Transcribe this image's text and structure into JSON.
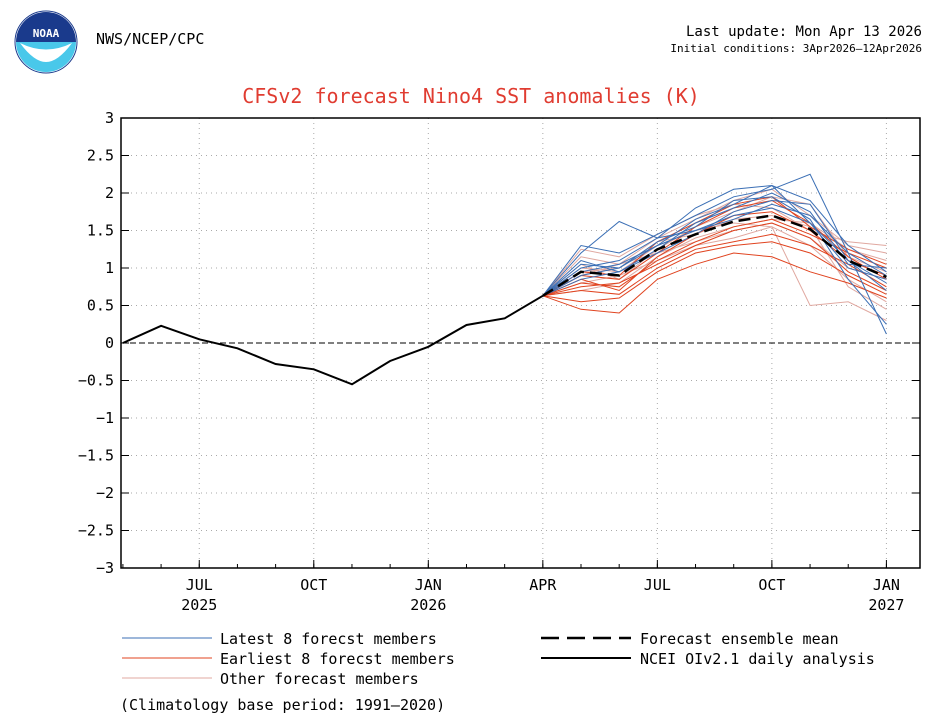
{
  "header": {
    "agency": "NWS/NCEP/CPC",
    "last_update": "Last update: Mon Apr 13 2026",
    "initial_conditions": "Initial conditions: 3Apr2026—12Apr2026",
    "logo_text": "NOAA"
  },
  "colors": {
    "latest": "#3b6fb5",
    "earliest": "#e0431f",
    "other": "#e0a8a0",
    "title": "#e03c31",
    "observed": "#000000",
    "grid": "#aaaaaa"
  },
  "chart_data": {
    "type": "line",
    "title": "CFSv2 forecast Nino4 SST anomalies (K)",
    "xlabel": "",
    "ylabel": "",
    "ylim": [
      -3,
      3
    ],
    "xlim": [
      0,
      20
    ],
    "yticks": [
      3,
      2.5,
      2,
      1.5,
      1,
      0.5,
      0,
      -0.5,
      -1,
      -1.5,
      -2,
      -2.5,
      -3
    ],
    "ytick_labels": [
      "3",
      "2.5",
      "2",
      "1.5",
      "1",
      "0.5",
      "0",
      "−0.5",
      "−1",
      "−1.5",
      "−2",
      "−2.5",
      "−3"
    ],
    "xticks": [
      {
        "x": 2,
        "label": "JUL",
        "year": "2025"
      },
      {
        "x": 5,
        "label": "OCT",
        "year": ""
      },
      {
        "x": 8,
        "label": "JAN",
        "year": "2026"
      },
      {
        "x": 11,
        "label": "APR",
        "year": ""
      },
      {
        "x": 14,
        "label": "JUL",
        "year": ""
      },
      {
        "x": 17,
        "label": "OCT",
        "year": ""
      },
      {
        "x": 20,
        "label": "JAN",
        "year": "2027"
      }
    ],
    "grid": true,
    "observed": {
      "name": "NCEI OIv2.1 daily analysis",
      "x": [
        0,
        1,
        2,
        3,
        4,
        5,
        6,
        7,
        8,
        9,
        10,
        11
      ],
      "y": [
        0.0,
        0.23,
        0.05,
        -0.07,
        -0.28,
        -0.35,
        -0.55,
        -0.24,
        -0.05,
        0.24,
        0.33,
        0.63
      ]
    },
    "ensemble_mean": {
      "name": "Forecast ensemble mean",
      "x": [
        11,
        12,
        13,
        14,
        15,
        16,
        17,
        18,
        19,
        20
      ],
      "y": [
        0.63,
        0.95,
        0.9,
        1.25,
        1.45,
        1.62,
        1.7,
        1.52,
        1.1,
        0.88
      ]
    },
    "forecast_x": [
      11,
      12,
      13,
      14,
      15,
      16,
      17,
      18,
      19,
      20
    ],
    "latest_members": [
      [
        0.63,
        1.3,
        1.2,
        1.45,
        1.7,
        1.95,
        2.05,
        2.25,
        1.2,
        0.12
      ],
      [
        0.63,
        1.2,
        1.62,
        1.4,
        1.8,
        2.05,
        2.1,
        1.9,
        1.3,
        0.95
      ],
      [
        0.63,
        0.95,
        1.05,
        1.3,
        1.5,
        1.7,
        1.8,
        1.6,
        1.1,
        0.8
      ],
      [
        0.63,
        1.1,
        0.95,
        1.25,
        1.6,
        1.8,
        2.0,
        1.75,
        1.05,
        1.0
      ],
      [
        0.63,
        0.9,
        1.0,
        1.35,
        1.55,
        1.9,
        1.95,
        1.65,
        0.85,
        0.25
      ],
      [
        0.63,
        1.0,
        1.1,
        1.4,
        1.5,
        1.65,
        1.85,
        1.7,
        1.2,
        0.9
      ],
      [
        0.63,
        0.85,
        0.95,
        1.2,
        1.45,
        1.75,
        1.9,
        1.85,
        1.1,
        0.7
      ],
      [
        0.63,
        1.05,
        1.0,
        1.3,
        1.65,
        1.85,
        2.1,
        1.6,
        1.0,
        0.85
      ]
    ],
    "earliest_members": [
      [
        0.63,
        0.45,
        0.4,
        0.85,
        1.05,
        1.2,
        1.15,
        0.95,
        0.8,
        0.6
      ],
      [
        0.63,
        0.7,
        0.65,
        1.0,
        1.25,
        1.35,
        1.45,
        1.3,
        1.05,
        0.75
      ],
      [
        0.63,
        0.8,
        0.75,
        1.1,
        1.35,
        1.55,
        1.65,
        1.45,
        1.2,
        1.0
      ],
      [
        0.63,
        0.9,
        0.85,
        1.2,
        1.55,
        1.8,
        1.9,
        1.6,
        1.15,
        0.85
      ],
      [
        0.63,
        0.75,
        0.8,
        1.05,
        1.3,
        1.5,
        1.6,
        1.4,
        0.95,
        0.7
      ],
      [
        0.63,
        0.85,
        0.7,
        1.15,
        1.45,
        1.7,
        1.75,
        1.5,
        1.1,
        0.9
      ],
      [
        0.63,
        0.55,
        0.6,
        0.95,
        1.2,
        1.3,
        1.35,
        1.2,
        0.9,
        0.65
      ],
      [
        0.63,
        0.95,
        0.9,
        1.35,
        1.6,
        1.85,
        1.95,
        1.55,
        1.25,
        1.05
      ]
    ],
    "other_members": [
      [
        0.63,
        1.15,
        1.05,
        1.4,
        1.65,
        1.9,
        2.05,
        1.7,
        1.3,
        1.2
      ],
      [
        0.63,
        1.0,
        0.95,
        1.3,
        1.5,
        1.6,
        1.55,
        0.5,
        0.55,
        0.3
      ],
      [
        0.63,
        0.9,
        1.05,
        1.2,
        1.35,
        1.5,
        1.6,
        1.4,
        1.0,
        0.85
      ],
      [
        0.63,
        1.25,
        1.15,
        1.45,
        1.7,
        1.85,
        1.8,
        1.5,
        1.35,
        1.3
      ],
      [
        0.63,
        0.8,
        0.9,
        1.1,
        1.3,
        1.4,
        1.55,
        1.3,
        0.85,
        0.55
      ],
      [
        0.63,
        1.05,
        0.85,
        1.25,
        1.55,
        1.75,
        1.95,
        1.85,
        1.15,
        0.95
      ],
      [
        0.63,
        0.95,
        1.0,
        1.35,
        1.45,
        1.65,
        1.7,
        1.55,
        0.75,
        0.45
      ],
      [
        0.63,
        0.7,
        0.8,
        1.15,
        1.4,
        1.55,
        1.65,
        1.6,
        1.25,
        1.1
      ]
    ],
    "legend": {
      "latest": "Latest 8 forecst members",
      "earliest": "Earliest 8 forecst members",
      "other": "Other forecast members",
      "mean": "Forecast ensemble mean",
      "observed": "NCEI OIv2.1 daily analysis",
      "note": "(Climatology base period: 1991—2020)"
    }
  }
}
